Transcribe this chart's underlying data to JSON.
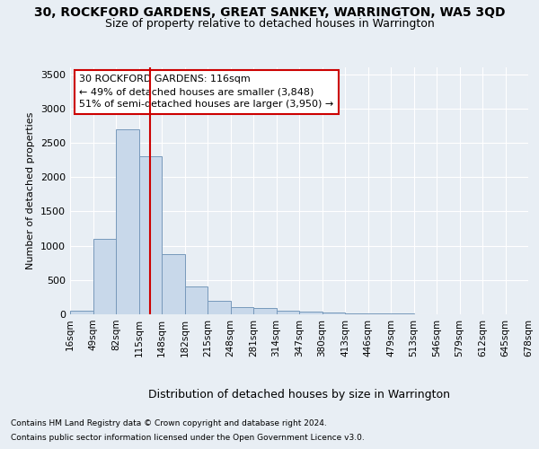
{
  "title": "30, ROCKFORD GARDENS, GREAT SANKEY, WARRINGTON, WA5 3QD",
  "subtitle": "Size of property relative to detached houses in Warrington",
  "xlabel": "Distribution of detached houses by size in Warrington",
  "ylabel": "Number of detached properties",
  "bar_values": [
    50,
    1100,
    2700,
    2300,
    880,
    410,
    200,
    105,
    95,
    50,
    35,
    25,
    15,
    10,
    10,
    5,
    5,
    3,
    2,
    2
  ],
  "x_labels": [
    "16sqm",
    "49sqm",
    "82sqm",
    "115sqm",
    "148sqm",
    "182sqm",
    "215sqm",
    "248sqm",
    "281sqm",
    "314sqm",
    "347sqm",
    "380sqm",
    "413sqm",
    "446sqm",
    "479sqm",
    "513sqm",
    "546sqm",
    "579sqm",
    "612sqm",
    "645sqm",
    "678sqm"
  ],
  "bar_color": "#c8d8ea",
  "bar_edge_color": "#7799bb",
  "vline_x_idx": 3,
  "vline_color": "#cc0000",
  "annotation_line1": "30 ROCKFORD GARDENS: 116sqm",
  "annotation_line2": "← 49% of detached houses are smaller (3,848)",
  "annotation_line3": "51% of semi-detached houses are larger (3,950) →",
  "annotation_box_color": "#cc0000",
  "annotation_fill": "#ffffff",
  "ylim": [
    0,
    3600
  ],
  "yticks": [
    0,
    500,
    1000,
    1500,
    2000,
    2500,
    3000,
    3500
  ],
  "footer_line1": "Contains HM Land Registry data © Crown copyright and database right 2024.",
  "footer_line2": "Contains public sector information licensed under the Open Government Licence v3.0.",
  "bg_color": "#e8eef4",
  "grid_color": "#ffffff",
  "title_fontsize": 10,
  "subtitle_fontsize": 9,
  "ylabel_fontsize": 8,
  "xlabel_fontsize": 9,
  "ytick_fontsize": 8,
  "xtick_fontsize": 7.5,
  "footer_fontsize": 6.5,
  "ann_fontsize": 8
}
